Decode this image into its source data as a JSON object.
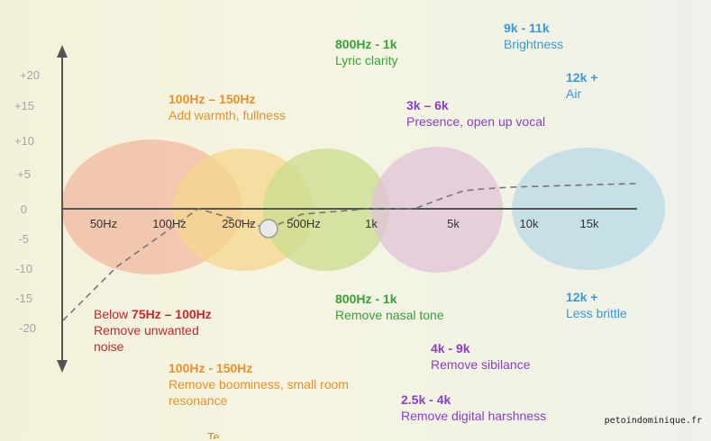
{
  "diagram": {
    "y_ticks": [
      "+20",
      "+15",
      "+10",
      "+5",
      "0",
      "-5",
      "-10",
      "-15",
      "-20"
    ],
    "x_ticks": [
      "50Hz",
      "100Hz",
      "250Hz",
      "500Hz",
      "1k",
      "5k",
      "10k",
      "15k"
    ],
    "colors": {
      "orange": "#e8912a",
      "green": "#35a23a",
      "purple": "#8a3fc8",
      "blue": "#3a9ad6",
      "red": "#c8262a",
      "axis": "#555555",
      "curve": "#777777"
    },
    "bands": [
      {
        "name": "band-low-orange",
        "color": "#f2b8a0"
      },
      {
        "name": "band-lowmid-yellow",
        "color": "#f5d58e"
      },
      {
        "name": "band-mid-green",
        "color": "#c9dc8c"
      },
      {
        "name": "band-highmid-purple",
        "color": "#e0c3d8"
      },
      {
        "name": "band-high-blue",
        "color": "#bcdbe6"
      }
    ],
    "boost": {
      "warmth": {
        "title": "100Hz – 150Hz",
        "desc": "Add warmth, fullness"
      },
      "lyric": {
        "title": "800Hz - 1k",
        "desc": "Lyric clarity"
      },
      "presence": {
        "title": "3k – 6k",
        "desc": "Presence, open up vocal"
      },
      "brightness": {
        "title": "9k - 11k",
        "desc": "Brightness"
      },
      "air": {
        "title": "12k +",
        "desc": "Air"
      }
    },
    "cut": {
      "noise": {
        "prefix": "Below ",
        "range": "75Hz – 100Hz",
        "line2": "Remove unwanted",
        "line3": "noise"
      },
      "boominess": {
        "title": "100Hz - 150Hz",
        "line1": "Remove boominess, small room",
        "line2": "resonance"
      },
      "nasal": {
        "title": "800Hz - 1k",
        "desc": "Remove nasal tone"
      },
      "sibilance": {
        "title": "4k - 9k",
        "desc": "Remove sibilance"
      },
      "harshness": {
        "title": "2.5k - 4k",
        "desc": "Remove digital harshness"
      },
      "brittle": {
        "title": "12k +",
        "desc": "Less brittle"
      }
    }
  },
  "watermark": "petoindominique.fr",
  "bottom_fragment": "Te… … …"
}
